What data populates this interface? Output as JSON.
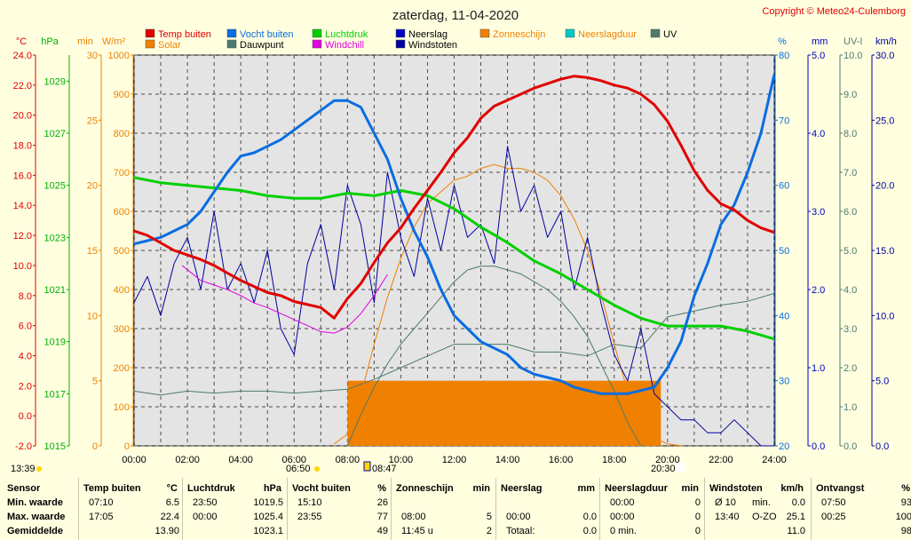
{
  "title": "zaterdag, 11-04-2020",
  "copyright": "Copyright © Meteo24-Culemborg",
  "colors": {
    "bg": "#ffffe0",
    "plot": "#e4e4e4",
    "grid": "#4a4a4a",
    "temp": "#e00000",
    "humidity": "#0a6de0",
    "pressure": "#00d000",
    "rain": "#0000c0",
    "sunshine": "#f08000",
    "solar": "#f08000",
    "dewpoint": "#4e7a6e",
    "windchill": "#e000e0",
    "gust": "#0000a0",
    "raindur": "#00c8c8",
    "uv": "#4e7a6e"
  },
  "legend": [
    {
      "label": "Temp buiten",
      "color": "#e00000"
    },
    {
      "label": "Vocht buiten",
      "color": "#0a6de0"
    },
    {
      "label": "Luchtdruk",
      "color": "#00d000"
    },
    {
      "label": "Neerslag",
      "color": "#0000c0"
    },
    {
      "label": "Zonneschijn",
      "color": "#f08000"
    },
    {
      "label": "Neerslagduur",
      "color": "#00c8c8"
    },
    {
      "label": "UV",
      "color": "#4e7a6e"
    },
    {
      "label": "Solar",
      "color": "#f08000"
    },
    {
      "label": "Dauwpunt",
      "color": "#4e7a6e"
    },
    {
      "label": "Windchill",
      "color": "#e000e0"
    },
    {
      "label": "Windstoten",
      "color": "#0000a0"
    }
  ],
  "chart_data": {
    "type": "line",
    "title": "zaterdag, 11-04-2020",
    "x_range_hours": [
      0,
      24
    ],
    "x_ticks": [
      "00:00",
      "02:00",
      "04:00",
      "06:00",
      "08:00",
      "10:00",
      "12:00",
      "14:00",
      "16:00",
      "18:00",
      "20:00",
      "22:00",
      "24:00"
    ],
    "axes": {
      "temp": {
        "unit": "°C",
        "range": [
          -2,
          24
        ],
        "ticks": [
          "-2.0",
          "0.0",
          "2.0",
          "4.0",
          "6.0",
          "8.0",
          "10.0",
          "12.0",
          "14.0",
          "16.0",
          "18.0",
          "20.0",
          "22.0",
          "24.0"
        ]
      },
      "pressure": {
        "unit": "hPa",
        "range": [
          1015,
          1030
        ],
        "ticks": [
          "1015",
          "1017",
          "1019",
          "1021",
          "1023",
          "1025",
          "1027",
          "1029"
        ]
      },
      "sunshine_min": {
        "unit": "min",
        "range": [
          0,
          30
        ],
        "ticks": [
          "0",
          "5",
          "10",
          "15",
          "20",
          "25",
          "30"
        ]
      },
      "solar": {
        "unit": "W/m²",
        "range": [
          0,
          1000
        ],
        "ticks": [
          "0",
          "100",
          "200",
          "300",
          "400",
          "500",
          "600",
          "700",
          "800",
          "900",
          "1000"
        ]
      },
      "humidity": {
        "unit": "%",
        "range": [
          20,
          80
        ],
        "ticks": [
          "20",
          "30",
          "40",
          "50",
          "60",
          "70",
          "80"
        ]
      },
      "rain": {
        "unit": "mm",
        "range": [
          0,
          5
        ],
        "ticks": [
          "0.0",
          "1.0",
          "2.0",
          "3.0",
          "4.0",
          "5.0"
        ]
      },
      "uv": {
        "unit": "UV-I",
        "range": [
          0,
          10
        ],
        "ticks": [
          "0.0",
          "1.0",
          "2.0",
          "3.0",
          "4.0",
          "5.0",
          "6.0",
          "7.0",
          "8.0",
          "9.0",
          "10.0"
        ]
      },
      "wind": {
        "unit": "km/h",
        "range": [
          0,
          30
        ],
        "ticks": [
          "0.0",
          "5.0",
          "10.0",
          "15.0",
          "20.0",
          "25.0",
          "30.0"
        ]
      }
    },
    "series": [
      {
        "name": "Temp buiten",
        "axis": "temp",
        "x": [
          0,
          0.5,
          1,
          1.5,
          2,
          2.5,
          3,
          3.5,
          4,
          4.5,
          5,
          5.5,
          6,
          6.5,
          7,
          7.5,
          8,
          8.5,
          9,
          9.5,
          10,
          10.5,
          11,
          11.5,
          12,
          12.5,
          13,
          13.5,
          14,
          14.5,
          15,
          15.5,
          16,
          16.5,
          17,
          17.5,
          18,
          18.5,
          19,
          19.5,
          20,
          20.5,
          21,
          21.5,
          22,
          22.5,
          23,
          23.5,
          24
        ],
        "values": [
          12.3,
          12.0,
          11.5,
          11.0,
          10.7,
          10.4,
          10.0,
          9.5,
          9.0,
          8.6,
          8.2,
          8.0,
          7.6,
          7.4,
          7.2,
          6.5,
          7.8,
          8.8,
          10.2,
          11.5,
          12.5,
          13.8,
          15.0,
          16.2,
          17.5,
          18.5,
          19.8,
          20.6,
          21.0,
          21.4,
          21.8,
          22.1,
          22.4,
          22.6,
          22.5,
          22.3,
          22.0,
          21.8,
          21.4,
          20.7,
          19.6,
          18.0,
          16.3,
          15.0,
          14.1,
          13.7,
          13.0,
          12.5,
          12.2
        ]
      },
      {
        "name": "Windchill",
        "axis": "temp",
        "x": [
          1.8,
          2.5,
          3,
          3.5,
          4,
          4.5,
          5,
          5.5,
          6,
          6.5,
          7,
          7.5,
          8,
          8.5,
          9,
          9.5
        ],
        "values": [
          10.0,
          9.0,
          8.7,
          8.4,
          8.0,
          7.5,
          7.2,
          6.8,
          6.4,
          6.0,
          5.6,
          5.5,
          5.9,
          6.8,
          8.0,
          9.4
        ]
      },
      {
        "name": "Luchtdruk",
        "axis": "pressure",
        "x": [
          0,
          1,
          2,
          3,
          4,
          5,
          6,
          7,
          8,
          9,
          10,
          11,
          12,
          13,
          14,
          15,
          16,
          17,
          18,
          19,
          20,
          21,
          22,
          23,
          24
        ],
        "values": [
          1025.3,
          1025.1,
          1025.0,
          1024.9,
          1024.8,
          1024.6,
          1024.5,
          1024.5,
          1024.7,
          1024.6,
          1024.8,
          1024.6,
          1024.1,
          1023.4,
          1022.8,
          1022.1,
          1021.6,
          1021.0,
          1020.4,
          1019.9,
          1019.6,
          1019.6,
          1019.6,
          1019.4,
          1019.1
        ]
      },
      {
        "name": "Vocht buiten",
        "axis": "humidity",
        "x": [
          0,
          0.5,
          1,
          1.5,
          2,
          2.5,
          3,
          3.5,
          4,
          4.5,
          5,
          5.5,
          6,
          6.5,
          7,
          7.5,
          8,
          8.5,
          9,
          9.5,
          10,
          10.5,
          11,
          11.5,
          12,
          12.5,
          13,
          13.5,
          14,
          14.5,
          15,
          15.5,
          16,
          16.5,
          17,
          17.5,
          18,
          18.5,
          19,
          19.5,
          20,
          20.5,
          21,
          21.5,
          22,
          22.5,
          23,
          23.5,
          24
        ],
        "values": [
          51,
          51.5,
          52,
          53,
          54,
          56,
          59,
          62,
          64.5,
          65,
          66,
          67,
          68.5,
          70,
          71.5,
          73,
          73,
          72,
          68,
          64,
          58,
          53,
          49,
          44,
          40,
          38,
          36,
          35,
          34,
          32,
          31,
          30.5,
          30,
          29,
          28.5,
          28,
          28,
          28,
          28.5,
          29,
          32,
          36,
          43,
          48,
          54,
          57,
          62,
          68,
          77
        ]
      },
      {
        "name": "Dauwpunt",
        "axis": "solar",
        "x": [
          0,
          1,
          2,
          3,
          4,
          5,
          6,
          7,
          8,
          9,
          10,
          11,
          12,
          13,
          14,
          15,
          16,
          17,
          18,
          19,
          20,
          21,
          22,
          23,
          24
        ],
        "values": [
          140,
          130,
          140,
          135,
          140,
          140,
          135,
          140,
          145,
          170,
          200,
          230,
          260,
          260,
          260,
          240,
          240,
          230,
          260,
          250,
          330,
          345,
          360,
          370,
          390
        ]
      },
      {
        "name": "Solar",
        "axis": "solar",
        "x": [
          7.5,
          8,
          8.5,
          9,
          9.5,
          10,
          10.5,
          11,
          11.5,
          12,
          12.5,
          13,
          13.5,
          14,
          14.5,
          15,
          15.5,
          16,
          16.5,
          17,
          17.5,
          18,
          18.5,
          19,
          19.5,
          20,
          20.5
        ],
        "values": [
          5,
          30,
          130,
          260,
          380,
          480,
          560,
          620,
          650,
          680,
          690,
          710,
          720,
          710,
          710,
          700,
          680,
          640,
          580,
          500,
          390,
          260,
          140,
          60,
          20,
          5,
          0
        ]
      },
      {
        "name": "UV",
        "axis": "solar",
        "x": [
          8,
          8.5,
          9,
          9.5,
          10,
          10.5,
          11,
          11.5,
          12,
          12.5,
          13,
          13.5,
          14,
          14.5,
          15,
          15.5,
          16,
          16.5,
          17,
          17.5,
          18,
          18.5,
          19
        ],
        "values": [
          0,
          80,
          150,
          210,
          260,
          300,
          340,
          380,
          420,
          450,
          460,
          460,
          450,
          440,
          420,
          400,
          370,
          330,
          280,
          210,
          140,
          60,
          0
        ]
      },
      {
        "name": "Windstoten",
        "axis": "wind",
        "x": [
          0,
          0.5,
          1,
          1.5,
          2,
          2.5,
          3,
          3.5,
          4,
          4.5,
          5,
          5.5,
          6,
          6.5,
          7,
          7.5,
          8,
          8.5,
          9,
          9.5,
          10,
          10.5,
          11,
          11.5,
          12,
          12.5,
          13,
          13.5,
          14,
          14.5,
          15,
          15.5,
          16,
          16.5,
          17,
          17.5,
          18,
          18.5,
          19,
          19.5,
          20,
          20.5,
          21,
          21.5,
          22,
          22.5,
          23,
          23.5,
          24
        ],
        "values": [
          11,
          13,
          10,
          14,
          16,
          12,
          18,
          12,
          14,
          11,
          15,
          9,
          7,
          14,
          17,
          12,
          20,
          17,
          11,
          21,
          16,
          13,
          19,
          15,
          20,
          16,
          17,
          14,
          23,
          18,
          20,
          16,
          18,
          12,
          16,
          11,
          7,
          5,
          9,
          4,
          3,
          2,
          2,
          1,
          1,
          2,
          1,
          0,
          0
        ]
      }
    ],
    "sunshine_block": {
      "start": "08:00",
      "end": "19:45",
      "minutes": 5
    }
  },
  "time_markers": {
    "left_time": "13:39",
    "sunrise": "06:50",
    "highest": "08:47",
    "sunset": "20:30"
  },
  "summary": {
    "headers": {
      "sensor": "Sensor",
      "temp": "Temp buiten",
      "temp_unit": "°C",
      "pressure": "Luchtdruk",
      "pressure_unit": "hPa",
      "humidity": "Vocht buiten",
      "humidity_unit": "%",
      "sunshine": "Zonneschijn",
      "sunshine_unit": "min",
      "rain": "Neerslag",
      "rain_unit": "mm",
      "raindur": "Neerslagduur",
      "raindur_unit": "min",
      "gust": "Windstoten",
      "gust_unit": "km/h",
      "light": "Ontvangst",
      "light_unit": "%"
    },
    "rows": [
      {
        "label": "Min. waarde",
        "temp_time": "07:10",
        "temp": "6.5",
        "pres_time": "23:50",
        "pres": "1019.5",
        "hum_time": "15:10",
        "hum": "26",
        "sun_time": "",
        "sun": "",
        "rain_time": "",
        "rain": "",
        "rdur_time": "00:00",
        "rdur": "0",
        "gust_label": "Ø 10",
        "gust_unit2": "min.",
        "gust": "0.0",
        "light_time": "07:50",
        "light": "93"
      },
      {
        "label": "Max. waarde",
        "temp_time": "17:05",
        "temp": "22.4",
        "pres_time": "00:00",
        "pres": "1025.4",
        "hum_time": "23:55",
        "hum": "77",
        "sun_time": "08:00",
        "sun": "5",
        "rain_time": "00:00",
        "rain": "0.0",
        "rdur_time": "00:00",
        "rdur": "0",
        "gust_label": "13:40",
        "gust_unit2": "O-ZO",
        "gust": "25.1",
        "light_time": "00:25",
        "light": "100"
      },
      {
        "label": "Gemiddelde",
        "temp_time": "",
        "temp": "13.90",
        "pres_time": "",
        "pres": "1023.1",
        "hum_time": "",
        "hum": "49",
        "sun_time": "11:45 u",
        "sun": "2",
        "rain_time": "Totaal:",
        "rain": "0.0",
        "rdur_time": "0 min.",
        "rdur": "0",
        "gust_label": "",
        "gust_unit2": "",
        "gust": "11.0",
        "light_time": "",
        "light": "98"
      }
    ]
  }
}
